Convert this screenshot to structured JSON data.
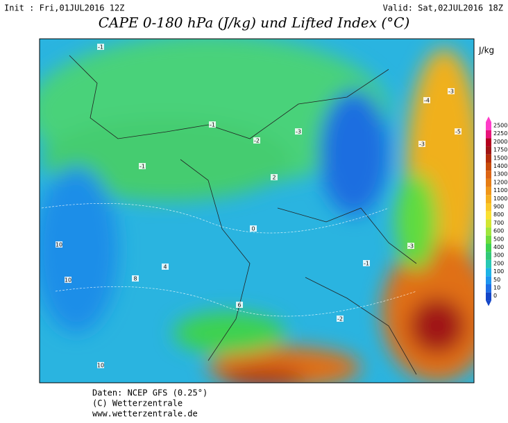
{
  "header": {
    "init": "Init : Fri,01JUL2016 12Z",
    "valid": "Valid: Sat,02JUL2016 18Z",
    "title": "CAPE 0-180 hPa (J/kg) und Lifted Index (°C)"
  },
  "colorbar": {
    "unit": "J/kg",
    "levels": [
      2500,
      2250,
      2000,
      1750,
      1500,
      1400,
      1300,
      1200,
      1100,
      1000,
      900,
      800,
      700,
      600,
      500,
      400,
      300,
      200,
      100,
      50,
      10,
      0
    ],
    "colors": [
      "#ff3cc8",
      "#e8147a",
      "#b4001e",
      "#a01414",
      "#b42d0a",
      "#c84b0a",
      "#dc6414",
      "#e67d14",
      "#f09619",
      "#f5af1e",
      "#fac828",
      "#fae132",
      "#d2e632",
      "#a0e63c",
      "#6edc3c",
      "#3cd250",
      "#32c878",
      "#28c8b4",
      "#1eb4e6",
      "#1e96f0",
      "#1e6ee6",
      "#1446c8"
    ]
  },
  "map": {
    "labels": [
      "-1",
      "-1",
      "-2",
      "-3",
      "-1",
      "2",
      "4",
      "8",
      "10",
      "10",
      "-3",
      "-4",
      "-5",
      "-3",
      "-1",
      "-2",
      "-3",
      "0",
      "6",
      "10"
    ]
  },
  "footer": {
    "lines": [
      "Daten: NCEP GFS (0.25°)",
      "(C) Wetterzentrale",
      "www.wetterzentrale.de"
    ]
  }
}
